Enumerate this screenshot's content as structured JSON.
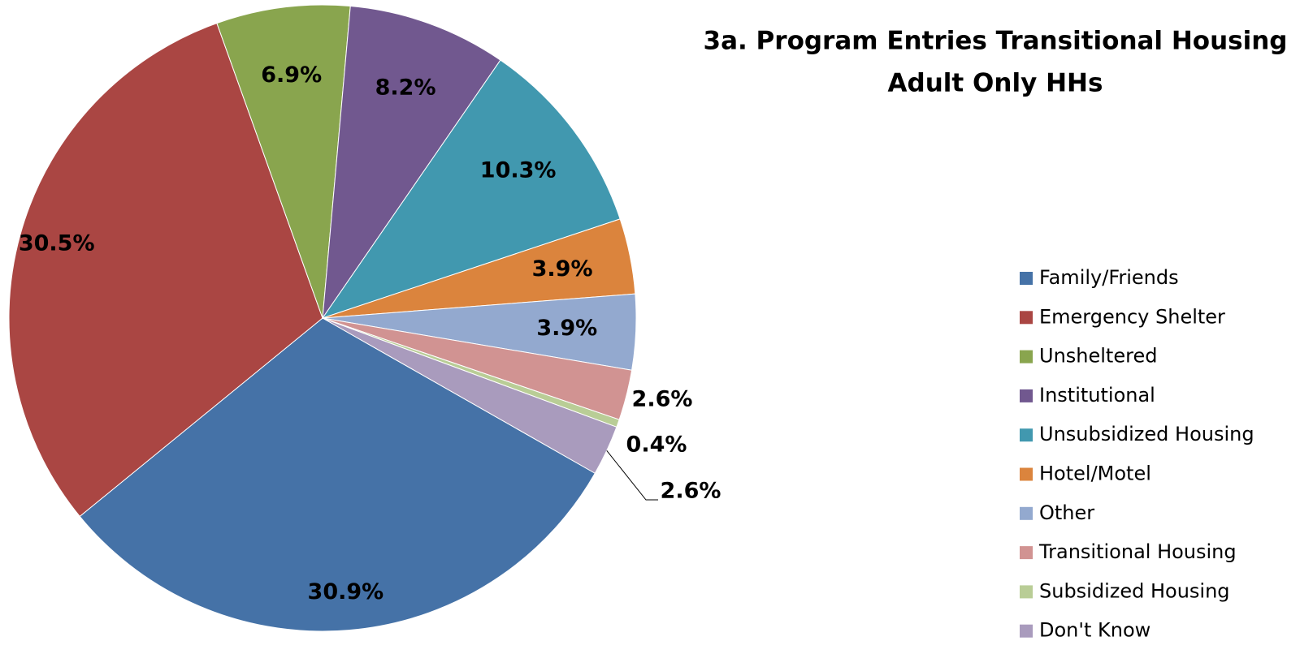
{
  "chart_data": {
    "type": "pie",
    "title": "3a. Program Entries Transitional Housing",
    "subtitle": "Adult Only HHs",
    "categories": [
      "Family/Friends",
      "Emergency Shelter",
      "Unsheltered",
      "Institutional",
      "Unsubsidized Housing",
      "Hotel/Motel",
      "Other",
      "Transitional Housing",
      "Subsidized Housing",
      "Don't Know"
    ],
    "values": [
      30.9,
      30.5,
      6.9,
      8.2,
      10.3,
      3.9,
      3.9,
      2.6,
      0.4,
      2.6
    ],
    "value_labels": [
      "30.9%",
      "30.5%",
      "6.9%",
      "8.2%",
      "10.3%",
      "3.9%",
      "3.9%",
      "2.6%",
      "0.4%",
      "2.6%"
    ],
    "colors": [
      "#4572a7",
      "#aa4643",
      "#89a54e",
      "#71588f",
      "#4198af",
      "#db843d",
      "#93a9cf",
      "#d19392",
      "#b9cd96",
      "#a99bbd"
    ],
    "legend": "right"
  }
}
